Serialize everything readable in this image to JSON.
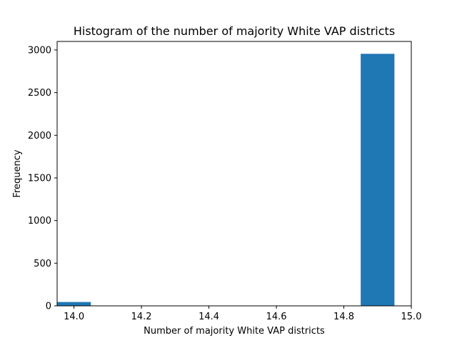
{
  "chart_data": {
    "type": "bar",
    "title": "Histogram of the number of majority White VAP districts",
    "xlabel": "Number of majority White VAP districts",
    "ylabel": "Frequency",
    "xlim": [
      13.95,
      15.0
    ],
    "ylim": [
      0,
      3100
    ],
    "xticks": [
      14.0,
      14.2,
      14.4,
      14.6,
      14.8,
      15.0
    ],
    "xtick_labels": [
      "14.0",
      "14.2",
      "14.4",
      "14.6",
      "14.8",
      "15.0"
    ],
    "yticks": [
      0,
      500,
      1000,
      1500,
      2000,
      2500,
      3000
    ],
    "ytick_labels": [
      "0",
      "500",
      "1000",
      "1500",
      "2000",
      "2500",
      "3000"
    ],
    "bins": [
      {
        "x_start": 13.95,
        "x_end": 14.05,
        "count": 45
      },
      {
        "x_start": 14.05,
        "x_end": 14.15,
        "count": 0
      },
      {
        "x_start": 14.15,
        "x_end": 14.25,
        "count": 0
      },
      {
        "x_start": 14.25,
        "x_end": 14.35,
        "count": 0
      },
      {
        "x_start": 14.35,
        "x_end": 14.45,
        "count": 0
      },
      {
        "x_start": 14.45,
        "x_end": 14.55,
        "count": 0
      },
      {
        "x_start": 14.55,
        "x_end": 14.65,
        "count": 0
      },
      {
        "x_start": 14.65,
        "x_end": 14.75,
        "count": 0
      },
      {
        "x_start": 14.75,
        "x_end": 14.85,
        "count": 0
      },
      {
        "x_start": 14.85,
        "x_end": 14.95,
        "count": 2955
      }
    ],
    "bar_color": "#1f77b4",
    "grid": false,
    "legend": "none"
  }
}
